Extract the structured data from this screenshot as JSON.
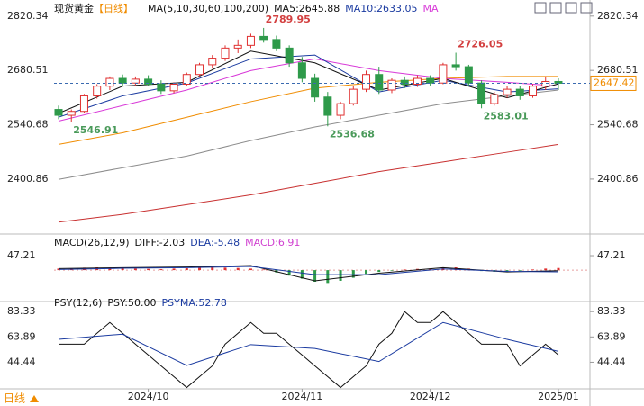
{
  "chart_data": [
    {
      "type": "candlestick",
      "title": "现货黄金",
      "period": "【日线】",
      "indicator": "MA(5,10,30,60,100,200)",
      "up_color": "#e03030",
      "down_color": "#2e9a4a",
      "open": [
        2580,
        2565,
        2575,
        2615,
        2640,
        2660,
        2648,
        2658,
        2645,
        2628,
        2645,
        2670,
        2695,
        2712,
        2738,
        2745,
        2768,
        2760,
        2738,
        2700,
        2660,
        2612,
        2565,
        2595,
        2632,
        2670,
        2630,
        2655,
        2645,
        2660,
        2648,
        2695,
        2690,
        2648,
        2595,
        2618,
        2632,
        2615,
        2640,
        2652
      ],
      "high": [
        2590,
        2580,
        2620,
        2645,
        2665,
        2670,
        2665,
        2668,
        2655,
        2650,
        2675,
        2700,
        2720,
        2745,
        2760,
        2775,
        2789.95,
        2770,
        2745,
        2715,
        2672,
        2625,
        2600,
        2640,
        2680,
        2690,
        2660,
        2665,
        2668,
        2668,
        2700,
        2726.05,
        2695,
        2655,
        2625,
        2640,
        2640,
        2645,
        2665,
        2660
      ],
      "low": [
        2555,
        2546.91,
        2570,
        2608,
        2630,
        2640,
        2640,
        2640,
        2620,
        2622,
        2640,
        2665,
        2685,
        2705,
        2725,
        2738,
        2752,
        2730,
        2690,
        2650,
        2600,
        2536.68,
        2555,
        2590,
        2625,
        2620,
        2622,
        2635,
        2638,
        2640,
        2645,
        2680,
        2640,
        2583.01,
        2590,
        2610,
        2605,
        2610,
        2630,
        2630
      ],
      "close": [
        2565,
        2575,
        2615,
        2640,
        2660,
        2648,
        2658,
        2645,
        2628,
        2645,
        2670,
        2695,
        2712,
        2738,
        2745,
        2768,
        2760,
        2738,
        2700,
        2660,
        2612,
        2565,
        2595,
        2632,
        2670,
        2630,
        2655,
        2645,
        2660,
        2648,
        2695,
        2690,
        2648,
        2595,
        2618,
        2632,
        2615,
        2640,
        2652,
        2647.42
      ],
      "ylim": [
        2264,
        2850
      ],
      "yticks": [
        2400.86,
        2540.68,
        2680.51,
        2820.34
      ],
      "series": [
        {
          "name": "MA5:2645.88",
          "color": "#111111",
          "x": [
            0,
            5,
            10,
            15,
            20,
            25,
            30,
            35,
            39
          ],
          "values": [
            2570,
            2640,
            2650,
            2730,
            2700,
            2630,
            2660,
            2610,
            2645.88
          ]
        },
        {
          "name": "MA10:2633.05",
          "color": "#1a3aa0",
          "x": [
            0,
            5,
            10,
            15,
            20,
            25,
            30,
            35,
            39
          ],
          "values": [
            2560,
            2615,
            2648,
            2710,
            2720,
            2625,
            2655,
            2625,
            2633.05
          ]
        },
        {
          "name": "MA",
          "color": "#d838d8",
          "x": [
            0,
            5,
            10,
            15,
            20,
            25,
            30,
            35,
            39
          ],
          "values": [
            2550,
            2590,
            2630,
            2680,
            2710,
            2680,
            2660,
            2650,
            2640
          ]
        },
        {
          "color": "#f08c00",
          "x": [
            0,
            5,
            10,
            15,
            20,
            25,
            30,
            35,
            39
          ],
          "values": [
            2490,
            2520,
            2560,
            2600,
            2635,
            2650,
            2660,
            2665,
            2665
          ]
        },
        {
          "color": "#8c8c8c",
          "x": [
            0,
            5,
            10,
            15,
            20,
            25,
            30,
            35,
            39
          ],
          "values": [
            2400,
            2430,
            2460,
            2500,
            2535,
            2565,
            2595,
            2615,
            2630
          ]
        },
        {
          "color": "#c83030",
          "x": [
            0,
            5,
            10,
            15,
            20,
            25,
            30,
            35,
            39
          ],
          "values": [
            2290,
            2310,
            2335,
            2360,
            2390,
            2420,
            2445,
            2470,
            2490
          ]
        }
      ],
      "annotations": [
        {
          "value": 2789.95,
          "x": 16,
          "color": "#d34040",
          "place": "above"
        },
        {
          "value": 2546.91,
          "x": 1,
          "color": "#4a9a5a",
          "place": "below"
        },
        {
          "value": 2536.68,
          "x": 21,
          "color": "#4a9a5a",
          "place": "below"
        },
        {
          "value": 2726.05,
          "x": 31,
          "color": "#d34040",
          "place": "above"
        },
        {
          "value": 2583.01,
          "x": 33,
          "color": "#4a9a5a",
          "place": "below"
        }
      ],
      "last_price": 2647.42,
      "last_price_color": "#f08c00"
    },
    {
      "type": "macd",
      "title": "MACD(26,12,9)",
      "ylim": [
        -88,
        112
      ],
      "yticks": [
        47.21
      ],
      "histogram": {
        "name": "MACD:6.91",
        "color": "#d040d0",
        "up_color": "#e03030",
        "down_color": "#2e9a4a",
        "values": [
          5,
          6,
          8,
          9,
          8,
          6,
          5,
          4,
          3,
          5,
          6,
          8,
          9,
          8,
          7,
          5,
          2,
          -8,
          -18,
          -28,
          -38,
          -42,
          -35,
          -25,
          -12,
          -6,
          -2,
          2,
          4,
          5,
          8,
          9,
          5,
          -3,
          -5,
          -4,
          -2,
          2,
          5,
          6.91
        ]
      },
      "series": [
        {
          "name": "DIFF:-2.03",
          "color": "#111111",
          "x": [
            0,
            5,
            10,
            15,
            20,
            25,
            30,
            35,
            39
          ],
          "values": [
            5,
            8,
            10,
            15,
            -35,
            -10,
            8,
            -6,
            -2.03
          ]
        },
        {
          "name": "DEA:-5.48",
          "color": "#1a3aa0",
          "x": [
            0,
            5,
            10,
            15,
            20,
            25,
            30,
            35,
            39
          ],
          "values": [
            2,
            6,
            8,
            12,
            -15,
            -15,
            4,
            -4,
            -5.48
          ]
        }
      ]
    },
    {
      "type": "line",
      "title": "PSY(12,6)",
      "ylim": [
        24,
        89
      ],
      "yticks": [
        44.44,
        63.89,
        83.33
      ],
      "categories": [
        null,
        null,
        null,
        null,
        null,
        null,
        null,
        "2024/10",
        null,
        null,
        null,
        null,
        null,
        null,
        null,
        null,
        null,
        null,
        null,
        "2024/11",
        null,
        null,
        null,
        null,
        null,
        null,
        null,
        null,
        null,
        "2024/12",
        null,
        null,
        null,
        null,
        null,
        null,
        null,
        null,
        null,
        "2025/01"
      ],
      "series": [
        {
          "name": "PSY:50.00",
          "color": "#111111",
          "values": [
            58.33,
            58.33,
            58.33,
            66.67,
            75,
            66.67,
            58.33,
            50,
            41.67,
            33.33,
            25,
            33.33,
            41.67,
            58.33,
            66.67,
            75,
            66.67,
            66.67,
            58.33,
            50,
            41.67,
            33.33,
            25,
            33.33,
            41.67,
            58.33,
            66.67,
            83.33,
            75,
            75,
            83.33,
            75,
            66.67,
            58.33,
            58.33,
            58.33,
            41.67,
            50,
            58.33,
            50
          ]
        },
        {
          "name": "PSYMA:52.78",
          "color": "#1a3aa0",
          "x": [
            0,
            5,
            10,
            15,
            20,
            25,
            30,
            35,
            39
          ],
          "values": [
            62,
            66,
            42,
            58,
            55,
            45,
            75,
            62,
            52.78
          ]
        }
      ]
    }
  ],
  "footer": "日线"
}
